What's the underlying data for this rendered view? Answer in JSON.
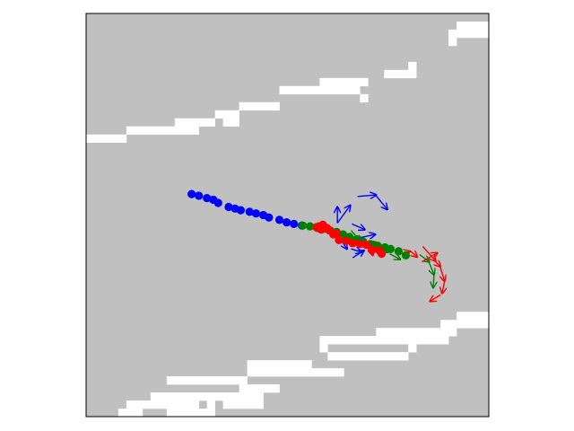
{
  "chart_data": {
    "type": "scatter",
    "grid": false,
    "frame_color": "#000000",
    "colors": {
      "background": "#c0c0c0",
      "free_space": "#ffffff",
      "history": "#0000ff",
      "ground_truth": "#008000",
      "prediction": "#ff0000"
    },
    "occupancy_grid": {
      "cols": 50,
      "rows": 50,
      "cell_units": 1,
      "white_runs": [
        [
          46,
          1,
          4
        ],
        [
          45,
          2,
          5
        ],
        [
          45,
          3,
          1
        ],
        [
          40,
          6,
          1
        ],
        [
          37,
          7,
          4
        ],
        [
          29,
          8,
          6
        ],
        [
          24,
          9,
          10
        ],
        [
          34,
          10,
          1
        ],
        [
          19,
          11,
          5
        ],
        [
          16,
          12,
          3
        ],
        [
          11,
          13,
          5
        ],
        [
          17,
          13,
          2
        ],
        [
          5,
          14,
          9
        ],
        [
          0,
          15,
          5
        ],
        [
          46,
          37,
          4
        ],
        [
          44,
          38,
          6
        ],
        [
          36,
          39,
          10
        ],
        [
          29,
          40,
          16
        ],
        [
          40,
          41,
          1
        ],
        [
          29,
          41,
          1
        ],
        [
          30,
          42,
          10
        ],
        [
          20,
          43,
          8
        ],
        [
          20,
          44,
          12
        ],
        [
          10,
          45,
          10
        ],
        [
          19,
          46,
          5
        ],
        [
          8,
          47,
          14
        ],
        [
          5,
          48,
          9
        ],
        [
          15,
          48,
          1
        ],
        [
          17,
          48,
          5
        ],
        [
          4,
          49,
          3
        ],
        [
          10,
          49,
          6
        ]
      ]
    },
    "history": {
      "x": [
        13.1,
        14.0,
        15.0,
        15.8,
        16.4,
        17.7,
        18.5,
        19.2,
        20.3,
        21.1,
        22.0,
        22.7,
        24.0,
        24.9,
        25.8,
        26.8
      ],
      "y": [
        22.4,
        22.6,
        22.9,
        23.1,
        23.5,
        24.0,
        24.2,
        24.4,
        24.6,
        24.8,
        25.0,
        25.3,
        25.6,
        25.9,
        26.1,
        26.3
      ]
    },
    "ground_truth": {
      "x": [
        26.9,
        27.8,
        28.7,
        29.5,
        30.3,
        31.1,
        31.9,
        32.7,
        33.6,
        34.4,
        35.3,
        36.2,
        37.1,
        37.8,
        38.8,
        39.7
      ],
      "y": [
        26.3,
        26.4,
        26.6,
        26.7,
        26.9,
        27.1,
        27.4,
        27.7,
        28.0,
        28.3,
        28.6,
        28.8,
        29.0,
        29.2,
        29.5,
        30.0
      ]
    },
    "prediction": {
      "x": [
        28.6,
        29.4,
        30.2,
        31.1,
        29.9,
        28.9,
        29.2,
        30.7,
        31.4,
        32.3,
        33.1,
        34.0,
        34.8,
        35.5,
        36.4,
        36.7
      ],
      "y": [
        26.5,
        26.2,
        26.9,
        27.3,
        26.6,
        26.4,
        26.8,
        27.4,
        28.1,
        28.2,
        28.5,
        28.6,
        28.7,
        29.3,
        29.4,
        29.8
      ]
    },
    "arrow_sets": [
      {
        "color": "#0000ff",
        "arrows": [
          [
            31.2,
            26.0,
            31.2,
            24.0
          ],
          [
            31.2,
            26.0,
            32.8,
            23.8
          ],
          [
            33.7,
            22.7,
            36.0,
            22.5
          ],
          [
            36.0,
            22.6,
            37.4,
            24.3
          ],
          [
            31.1,
            27.3,
            32.4,
            29.2
          ],
          [
            33.0,
            26.1,
            34.6,
            26.8
          ],
          [
            34.0,
            27.8,
            35.9,
            27.4
          ],
          [
            32.9,
            29.2,
            34.2,
            29.6
          ],
          [
            33.1,
            30.3,
            34.5,
            29.4
          ]
        ]
      },
      {
        "color": "#008000",
        "arrows": [
          [
            32.9,
            26.9,
            34.1,
            28.3
          ],
          [
            35.1,
            28.5,
            36.5,
            28.8
          ],
          [
            36.4,
            29.1,
            37.5,
            29.6
          ],
          [
            37.7,
            29.8,
            39.0,
            30.5
          ],
          [
            41.4,
            29.9,
            42.6,
            30.8
          ],
          [
            42.6,
            30.9,
            43.2,
            32.4
          ],
          [
            43.2,
            32.4,
            43.1,
            34.0
          ]
        ]
      },
      {
        "color": "#ff0000",
        "arrows": [
          [
            35.2,
            28.7,
            35.6,
            30.0
          ],
          [
            36.2,
            29.6,
            35.7,
            28.3
          ],
          [
            38.7,
            29.9,
            40.2,
            29.5
          ],
          [
            40.2,
            29.4,
            41.1,
            30.2
          ],
          [
            41.7,
            30.8,
            43.6,
            29.7
          ],
          [
            41.8,
            28.9,
            43.4,
            30.7
          ],
          [
            43.3,
            30.7,
            44.0,
            31.4
          ],
          [
            44.0,
            31.5,
            44.5,
            33.2
          ],
          [
            44.5,
            33.3,
            44.2,
            34.7
          ],
          [
            44.0,
            34.9,
            42.7,
            35.7
          ]
        ]
      }
    ]
  }
}
